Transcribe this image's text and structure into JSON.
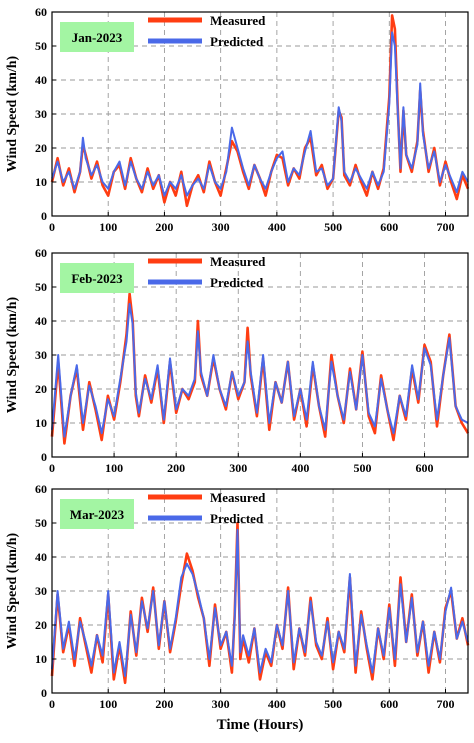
{
  "chart_data": [
    {
      "type": "line",
      "month_label": "Jan-2023",
      "ylabel": "Wind Speed (km/h)",
      "xlabel": "",
      "xlim": [
        0,
        740
      ],
      "ylim": [
        0,
        60
      ],
      "xticks": [
        0,
        100,
        200,
        300,
        400,
        500,
        600,
        700
      ],
      "yticks": [
        0,
        10,
        20,
        30,
        40,
        50,
        60
      ],
      "grid": true,
      "legend_position": "top-left",
      "series": [
        {
          "name": "Measured",
          "color": "#ff3d12",
          "x": [
            0,
            10,
            20,
            30,
            40,
            50,
            55,
            60,
            70,
            80,
            90,
            100,
            110,
            120,
            130,
            140,
            150,
            160,
            170,
            180,
            190,
            200,
            210,
            220,
            230,
            240,
            250,
            260,
            270,
            280,
            290,
            300,
            310,
            320,
            330,
            340,
            350,
            360,
            370,
            380,
            390,
            400,
            410,
            420,
            430,
            440,
            450,
            460,
            470,
            480,
            490,
            500,
            510,
            515,
            520,
            530,
            540,
            550,
            560,
            570,
            580,
            590,
            600,
            605,
            610,
            615,
            620,
            625,
            630,
            640,
            650,
            655,
            660,
            670,
            680,
            690,
            700,
            710,
            720,
            730,
            740
          ],
          "y": [
            10,
            17,
            9,
            14,
            7,
            13,
            21,
            18,
            11,
            16,
            9,
            6,
            13,
            15,
            8,
            17,
            11,
            7,
            14,
            8,
            12,
            4,
            10,
            6,
            13,
            3,
            9,
            12,
            7,
            16,
            10,
            6,
            14,
            22,
            19,
            13,
            8,
            15,
            11,
            6,
            13,
            18,
            17,
            9,
            14,
            11,
            20,
            23,
            12,
            15,
            8,
            11,
            31,
            29,
            12,
            9,
            15,
            10,
            6,
            13,
            8,
            14,
            35,
            59,
            55,
            32,
            13,
            31,
            18,
            13,
            22,
            37,
            25,
            13,
            20,
            9,
            16,
            10,
            5,
            12,
            8
          ]
        },
        {
          "name": "Predicted",
          "color": "#4a69e8",
          "x": [
            0,
            10,
            20,
            30,
            40,
            50,
            55,
            60,
            70,
            80,
            90,
            100,
            110,
            120,
            130,
            140,
            150,
            160,
            170,
            180,
            190,
            200,
            210,
            220,
            230,
            240,
            250,
            260,
            270,
            280,
            290,
            300,
            310,
            320,
            330,
            340,
            350,
            360,
            370,
            380,
            390,
            400,
            410,
            420,
            430,
            440,
            450,
            460,
            470,
            480,
            490,
            500,
            510,
            515,
            520,
            530,
            540,
            550,
            560,
            570,
            580,
            590,
            600,
            605,
            610,
            615,
            620,
            625,
            630,
            640,
            650,
            655,
            660,
            670,
            680,
            690,
            700,
            710,
            720,
            730,
            740
          ],
          "y": [
            11,
            16,
            10,
            13,
            8,
            13,
            23,
            17,
            12,
            15,
            10,
            8,
            13,
            16,
            9,
            16,
            11,
            8,
            13,
            9,
            12,
            6,
            10,
            8,
            12,
            6,
            9,
            11,
            8,
            15,
            10,
            8,
            13,
            26,
            20,
            14,
            9,
            15,
            11,
            8,
            13,
            17,
            19,
            10,
            14,
            12,
            19,
            25,
            13,
            14,
            9,
            11,
            32,
            28,
            13,
            10,
            14,
            11,
            8,
            13,
            9,
            13,
            33,
            54,
            50,
            31,
            14,
            32,
            18,
            14,
            21,
            39,
            24,
            14,
            19,
            10,
            15,
            11,
            7,
            13,
            10
          ]
        }
      ]
    },
    {
      "type": "line",
      "month_label": "Feb-2023",
      "ylabel": "Wind Speed (km/h)",
      "xlabel": "",
      "xlim": [
        0,
        670
      ],
      "ylim": [
        0,
        60
      ],
      "xticks": [
        0,
        100,
        200,
        300,
        400,
        500,
        600
      ],
      "yticks": [
        0,
        10,
        20,
        30,
        40,
        50,
        60
      ],
      "grid": true,
      "legend_position": "top-left",
      "series": [
        {
          "name": "Measured",
          "color": "#ff3d12",
          "x": [
            0,
            10,
            20,
            30,
            40,
            50,
            60,
            70,
            80,
            90,
            100,
            110,
            120,
            125,
            130,
            135,
            140,
            150,
            160,
            170,
            180,
            190,
            200,
            210,
            220,
            230,
            235,
            240,
            250,
            260,
            270,
            280,
            290,
            300,
            310,
            315,
            320,
            330,
            340,
            350,
            360,
            370,
            380,
            390,
            400,
            410,
            420,
            430,
            440,
            450,
            460,
            470,
            480,
            490,
            500,
            510,
            520,
            530,
            540,
            550,
            560,
            570,
            580,
            590,
            600,
            610,
            620,
            630,
            640,
            650,
            660,
            670
          ],
          "y": [
            6,
            28,
            4,
            18,
            26,
            8,
            22,
            14,
            5,
            18,
            11,
            22,
            36,
            48,
            40,
            18,
            12,
            24,
            16,
            26,
            10,
            28,
            13,
            20,
            17,
            22,
            40,
            24,
            18,
            29,
            20,
            14,
            25,
            17,
            22,
            38,
            24,
            12,
            29,
            8,
            22,
            16,
            28,
            11,
            20,
            9,
            27,
            15,
            6,
            30,
            18,
            10,
            26,
            14,
            31,
            12,
            7,
            24,
            14,
            5,
            18,
            11,
            26,
            16,
            33,
            28,
            9,
            24,
            36,
            15,
            10,
            7
          ]
        },
        {
          "name": "Predicted",
          "color": "#4a69e8",
          "x": [
            0,
            10,
            20,
            30,
            40,
            50,
            60,
            70,
            80,
            90,
            100,
            110,
            120,
            125,
            130,
            135,
            140,
            150,
            160,
            170,
            180,
            190,
            200,
            210,
            220,
            230,
            235,
            240,
            250,
            260,
            270,
            280,
            290,
            300,
            310,
            315,
            320,
            330,
            340,
            350,
            360,
            370,
            380,
            390,
            400,
            410,
            420,
            430,
            440,
            450,
            460,
            470,
            480,
            490,
            500,
            510,
            520,
            530,
            540,
            550,
            560,
            570,
            580,
            590,
            600,
            610,
            620,
            630,
            640,
            650,
            660,
            670
          ],
          "y": [
            8,
            30,
            6,
            18,
            27,
            10,
            21,
            15,
            7,
            17,
            12,
            23,
            34,
            45,
            39,
            19,
            13,
            23,
            17,
            27,
            11,
            29,
            14,
            20,
            18,
            23,
            37,
            25,
            18,
            30,
            20,
            15,
            25,
            18,
            22,
            34,
            25,
            13,
            30,
            10,
            22,
            16,
            28,
            12,
            20,
            11,
            28,
            15,
            8,
            28,
            18,
            11,
            25,
            14,
            30,
            13,
            9,
            23,
            14,
            7,
            18,
            12,
            27,
            17,
            32,
            27,
            11,
            24,
            35,
            15,
            11,
            10
          ]
        }
      ]
    },
    {
      "type": "line",
      "month_label": "Mar-2023",
      "ylabel": "Wind Speed (km/h)",
      "xlabel": "Time (Hours)",
      "xlim": [
        0,
        740
      ],
      "ylim": [
        0,
        60
      ],
      "xticks": [
        0,
        100,
        200,
        300,
        400,
        500,
        600,
        700
      ],
      "yticks": [
        0,
        10,
        20,
        30,
        40,
        50,
        60
      ],
      "grid": true,
      "legend_position": "top-left",
      "series": [
        {
          "name": "Measured",
          "color": "#ff3d12",
          "x": [
            0,
            10,
            20,
            30,
            40,
            50,
            60,
            70,
            80,
            90,
            100,
            110,
            120,
            130,
            140,
            150,
            160,
            170,
            180,
            190,
            200,
            210,
            220,
            230,
            240,
            250,
            260,
            270,
            280,
            290,
            300,
            310,
            320,
            325,
            330,
            335,
            340,
            350,
            360,
            370,
            380,
            390,
            400,
            410,
            420,
            430,
            440,
            450,
            460,
            470,
            480,
            490,
            500,
            510,
            520,
            530,
            540,
            550,
            560,
            570,
            580,
            590,
            600,
            610,
            620,
            630,
            640,
            650,
            660,
            670,
            680,
            690,
            700,
            710,
            720,
            730,
            740
          ],
          "y": [
            5,
            29,
            12,
            20,
            8,
            22,
            14,
            6,
            17,
            9,
            29,
            4,
            14,
            3,
            24,
            11,
            28,
            18,
            31,
            13,
            27,
            12,
            21,
            32,
            41,
            36,
            28,
            22,
            8,
            26,
            13,
            18,
            6,
            23,
            50,
            10,
            16,
            9,
            19,
            4,
            12,
            8,
            20,
            13,
            31,
            7,
            19,
            11,
            28,
            14,
            10,
            22,
            7,
            18,
            12,
            34,
            6,
            24,
            13,
            4,
            19,
            10,
            26,
            8,
            34,
            15,
            29,
            11,
            21,
            6,
            18,
            9,
            25,
            30,
            16,
            22,
            14
          ]
        },
        {
          "name": "Predicted",
          "color": "#4a69e8",
          "x": [
            0,
            10,
            20,
            30,
            40,
            50,
            60,
            70,
            80,
            90,
            100,
            110,
            120,
            130,
            140,
            150,
            160,
            170,
            180,
            190,
            200,
            210,
            220,
            230,
            240,
            250,
            260,
            270,
            280,
            290,
            300,
            310,
            320,
            325,
            330,
            335,
            340,
            350,
            360,
            370,
            380,
            390,
            400,
            410,
            420,
            430,
            440,
            450,
            460,
            470,
            480,
            490,
            500,
            510,
            520,
            530,
            540,
            550,
            560,
            570,
            580,
            590,
            600,
            610,
            620,
            630,
            640,
            650,
            660,
            670,
            680,
            690,
            700,
            710,
            720,
            730,
            740
          ],
          "y": [
            7,
            30,
            13,
            21,
            10,
            21,
            15,
            8,
            17,
            11,
            30,
            6,
            15,
            5,
            23,
            12,
            27,
            19,
            30,
            14,
            27,
            13,
            22,
            34,
            38,
            35,
            29,
            22,
            10,
            25,
            14,
            18,
            8,
            22,
            48,
            12,
            17,
            11,
            19,
            6,
            13,
            9,
            20,
            14,
            30,
            9,
            19,
            12,
            27,
            15,
            11,
            21,
            9,
            18,
            13,
            35,
            8,
            23,
            14,
            6,
            19,
            11,
            25,
            10,
            32,
            15,
            28,
            12,
            21,
            8,
            18,
            10,
            24,
            31,
            16,
            21,
            15
          ]
        }
      ]
    }
  ]
}
